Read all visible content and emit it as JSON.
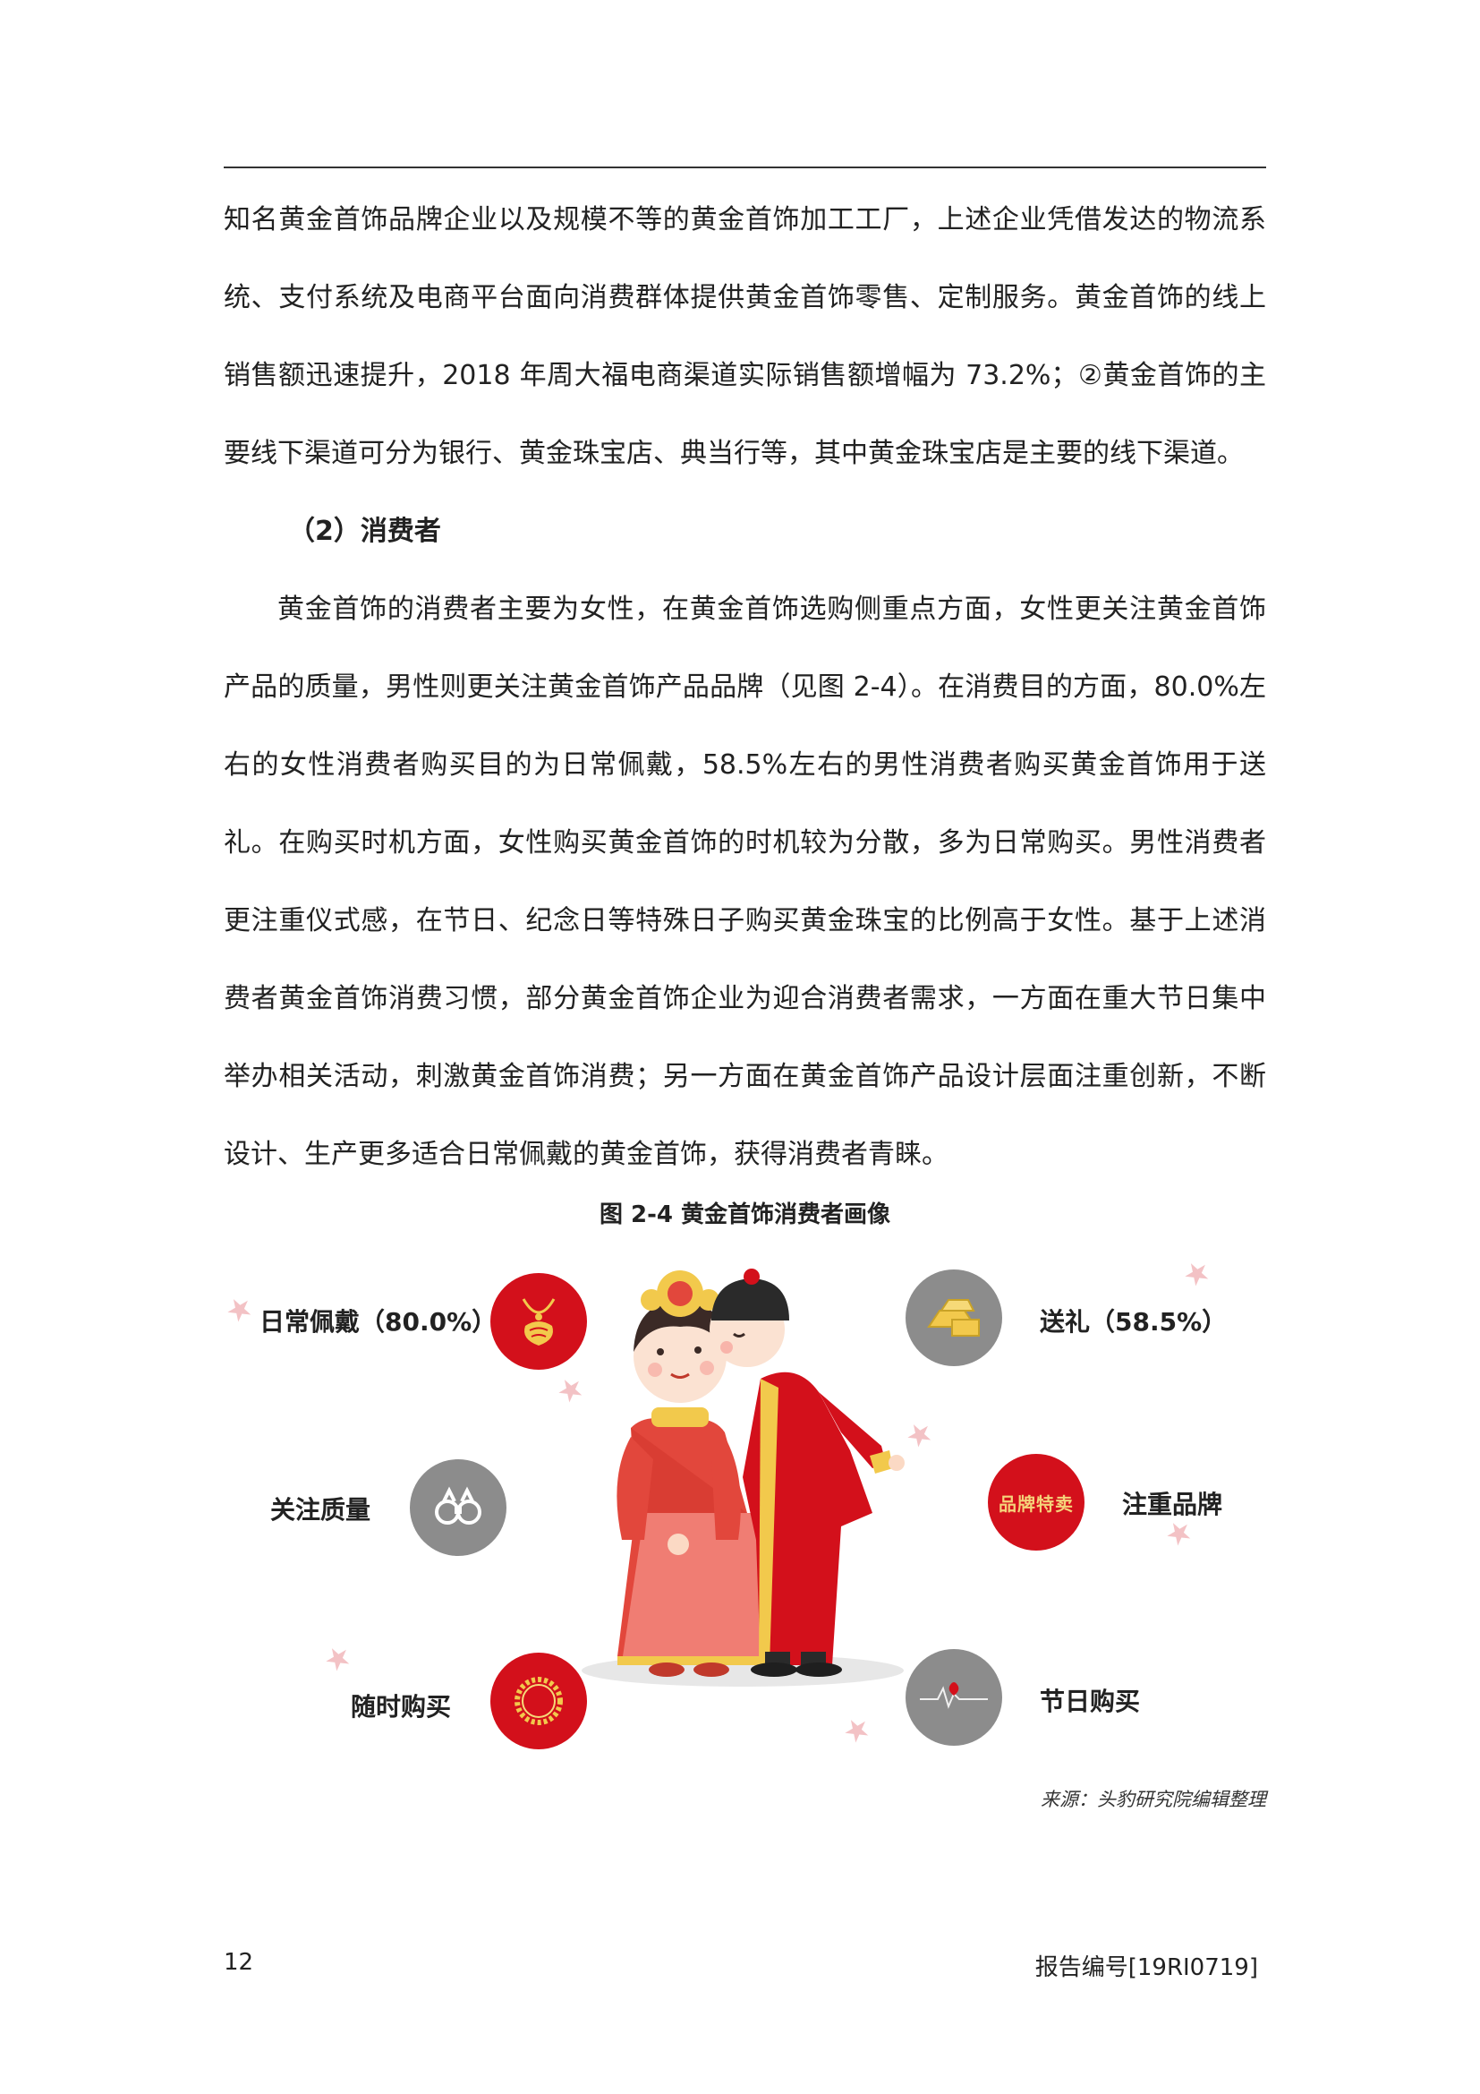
{
  "paragraphs": {
    "p1": "知名黄金首饰品牌企业以及规模不等的黄金首饰加工工厂，上述企业凭借发达的物流系统、支付系统及电商平台面向消费群体提供黄金首饰零售、定制服务。黄金首饰的线上销售额迅速提升，2018 年周大福电商渠道实际销售额增幅为 73.2%；②黄金首饰的主要线下渠道可分为银行、黄金珠宝店、典当行等，其中黄金珠宝店是主要的线下渠道。",
    "heading": "（2）消费者",
    "p2": "黄金首饰的消费者主要为女性，在黄金首饰选购侧重点方面，女性更关注黄金首饰产品的质量，男性则更关注黄金首饰产品品牌（见图 2-4）。在消费目的方面，80.0%左右的女性消费者购买目的为日常佩戴，58.5%左右的男性消费者购买黄金首饰用于送礼。在购买时机方面，女性购买黄金首饰的时机较为分散，多为日常购买。男性消费者更注重仪式感，在节日、纪念日等特殊日子购买黄金珠宝的比例高于女性。基于上述消费者黄金首饰消费习惯，部分黄金首饰企业为迎合消费者需求，一方面在重大节日集中举办相关活动，刺激黄金首饰消费；另一方面在黄金首饰产品设计层面注重创新，不断设计、生产更多适合日常佩戴的黄金首饰，获得消费者青睐。"
  },
  "figure": {
    "caption": "图 2-4  黄金首饰消费者画像",
    "labels": {
      "daily_wear": "日常佩戴（80.0%）",
      "gift": "送礼（58.5%）",
      "quality": "关注质量",
      "brand": "注重品牌",
      "anytime": "随时购买",
      "holiday": "节日购买"
    },
    "brand_badge_text": "品牌特卖",
    "colors": {
      "red": "#d3101b",
      "grey": "#8c8c8c",
      "gold": "#f2c94c"
    }
  },
  "source": "来源：头豹研究院编辑整理",
  "footer": {
    "page_number": "12",
    "report_id": "报告编号[19RI0719]"
  }
}
